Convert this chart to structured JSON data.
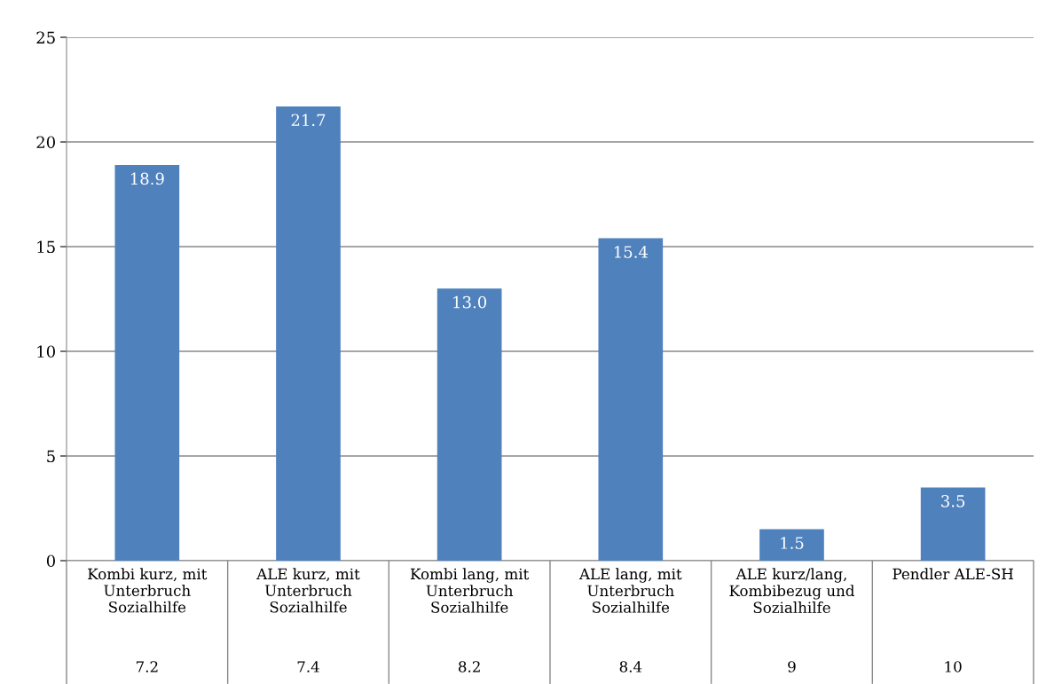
{
  "chart_data": {
    "type": "bar",
    "categories": [
      "Kombi kurz, mit Unterbruch Sozialhilfe",
      "ALE kurz, mit Unterbruch Sozialhilfe",
      "Kombi lang, mit Unterbruch Sozialhilfe",
      "ALE lang, mit Unterbruch Sozialhilfe",
      "ALE kurz/lang, Kombibezug und Sozialhilfe",
      "Pendler ALE-SH"
    ],
    "values": [
      18.9,
      21.7,
      13.0,
      15.4,
      1.5,
      3.5
    ],
    "value_labels": [
      "18.9",
      "21.7",
      "13.0",
      "15.4",
      "1.5",
      "3.5"
    ],
    "color": "#4f81bd",
    "ylim": [
      0,
      25
    ],
    "yticks": [
      0,
      5,
      10,
      15,
      20,
      25
    ],
    "grid": "y",
    "annotations": [
      "7.2",
      "7.4",
      "8.2",
      "8.4",
      "9",
      "10"
    ]
  }
}
